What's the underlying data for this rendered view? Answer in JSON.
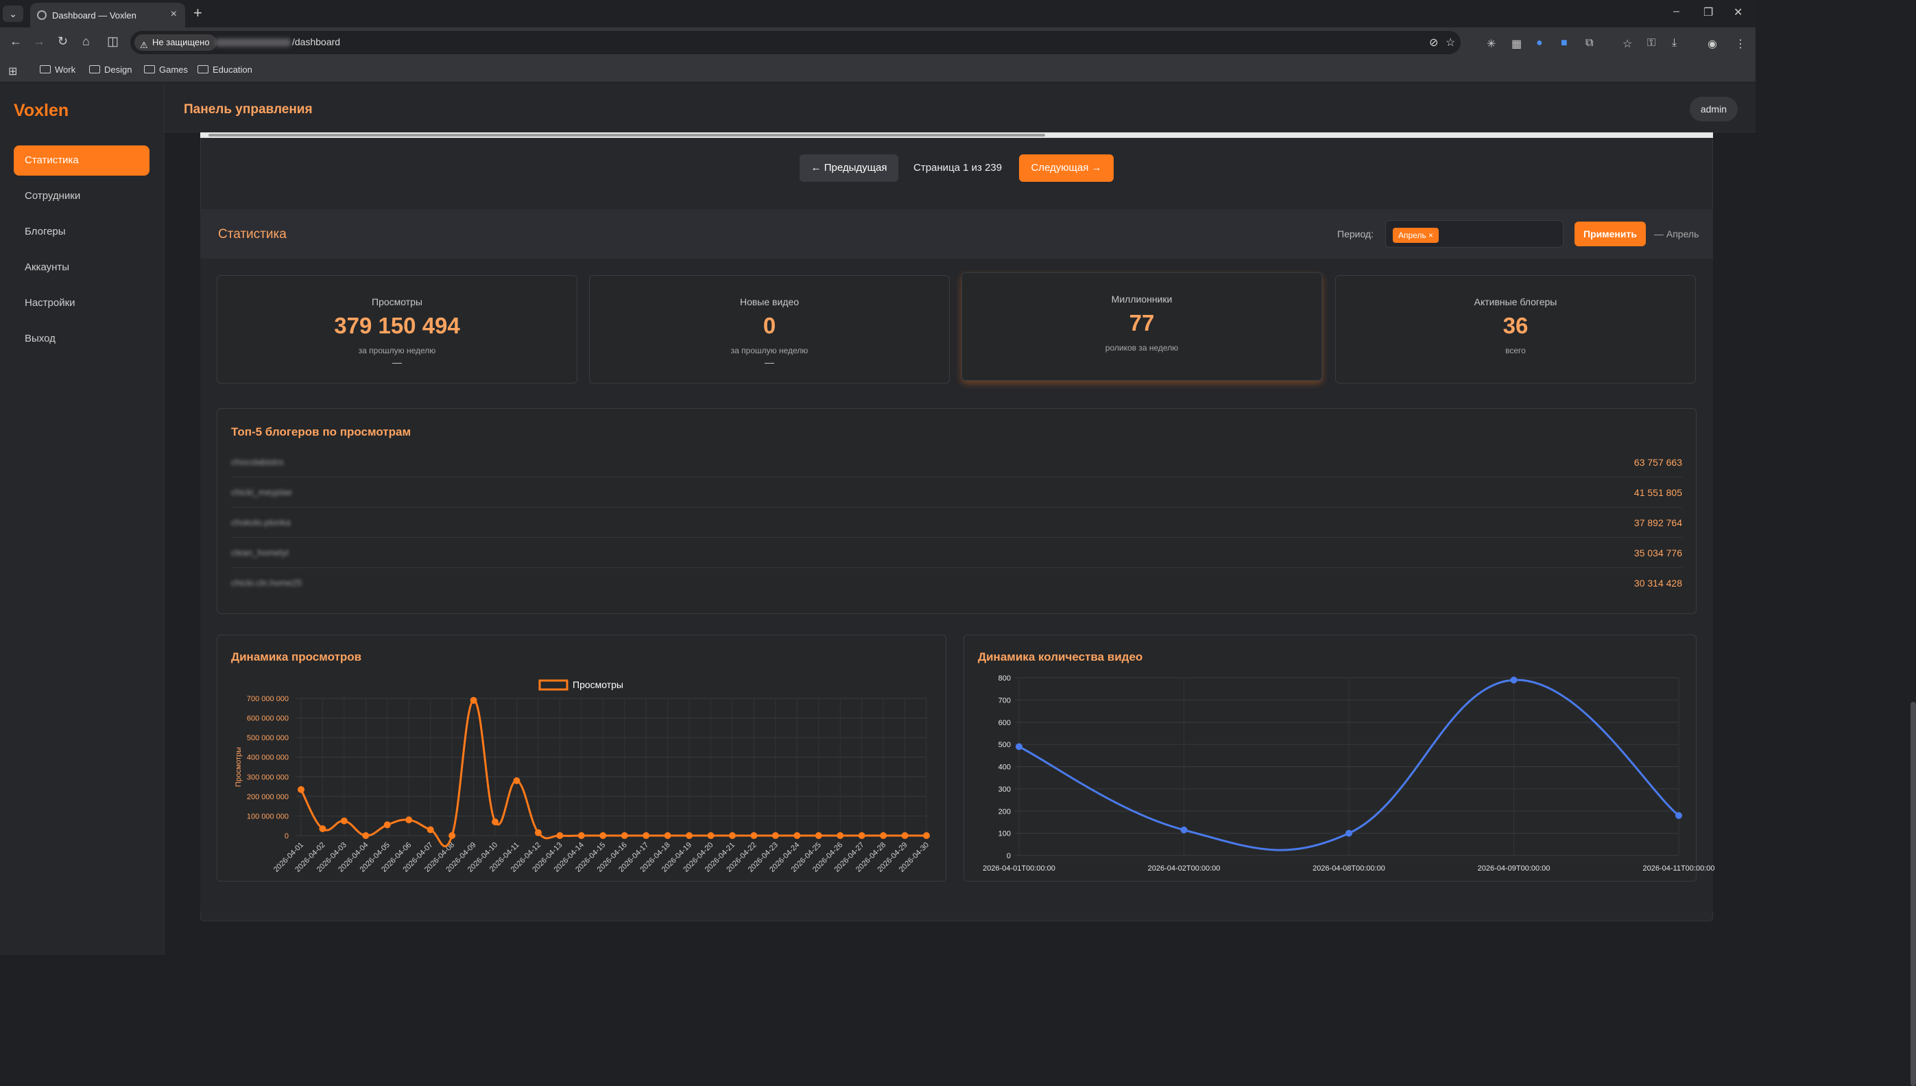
{
  "browser": {
    "tab_title": "Dashboard — Voxlen",
    "security_label": "Не защищено",
    "url_path": "/dashboard",
    "bookmarks": [
      "Work",
      "Design",
      "Games",
      "Education"
    ]
  },
  "app": {
    "logo": "Voxlen",
    "page_title": "Панель управления",
    "user": "admin",
    "nav": [
      {
        "label": "Статистика",
        "active": true
      },
      {
        "label": "Сотрудники"
      },
      {
        "label": "Блогеры"
      },
      {
        "label": "Аккаунты"
      },
      {
        "label": "Настройки"
      },
      {
        "label": "Выход"
      }
    ],
    "accent": "#ff7a1a"
  },
  "pager": {
    "prev": "← Предыдущая",
    "indicator": "Страница 1 из 239",
    "next": "Следующая →"
  },
  "stats": {
    "title": "Статистика",
    "period_label": "Период:",
    "period_chip": "Апрель ×",
    "apply": "Применить",
    "period_note": "— Апрель",
    "kpis": [
      {
        "label": "Просмотры",
        "value": "379 150 494",
        "sub": "за прошлую неделю",
        "dash": "—"
      },
      {
        "label": "Новые видео",
        "value": "0",
        "sub": "за прошлую неделю",
        "dash": "—"
      },
      {
        "label": "Миллионники",
        "value": "77",
        "sub": "роликов за неделю",
        "dash": ""
      },
      {
        "label": "Активные блогеры",
        "value": "36",
        "sub": "всего",
        "dash": ""
      }
    ]
  },
  "top5": {
    "title": "Топ-5 блогеров по просмотрам",
    "rows": [
      {
        "name": "chocolabistro",
        "value": "63 757 663"
      },
      {
        "name": "chicki_meyplae",
        "value": "41 551 805"
      },
      {
        "name": "chokolo.plonka",
        "value": "37 892 764"
      },
      {
        "name": "clean_homelyt",
        "value": "35 034 776"
      },
      {
        "name": "chicki.cln.home25",
        "value": "30 314 428"
      }
    ]
  },
  "chart_data": [
    {
      "type": "line",
      "title": "Динамика просмотров",
      "ylabel": "Просмотры",
      "xlabel": "",
      "legend": "top-center",
      "series": [
        {
          "name": "Просмотры",
          "color": "#ff7a1a",
          "values": [
            235000000,
            35000000,
            75000000,
            0,
            55000000,
            80000000,
            30000000,
            0,
            690000000,
            70000000,
            280000000,
            15000000,
            0,
            0,
            0,
            0,
            0,
            0,
            0,
            0,
            0,
            0,
            0,
            0,
            0,
            0,
            0,
            0,
            0,
            0
          ]
        }
      ],
      "categories": [
        "2026-04-01",
        "2026-04-02",
        "2026-04-03",
        "2026-04-04",
        "2026-04-05",
        "2026-04-06",
        "2026-04-07",
        "2026-04-08",
        "2026-04-09",
        "2026-04-10",
        "2026-04-11",
        "2026-04-12",
        "2026-04-13",
        "2026-04-14",
        "2026-04-15",
        "2026-04-16",
        "2026-04-17",
        "2026-04-18",
        "2026-04-19",
        "2026-04-20",
        "2026-04-21",
        "2026-04-22",
        "2026-04-23",
        "2026-04-24",
        "2026-04-25",
        "2026-04-26",
        "2026-04-27",
        "2026-04-28",
        "2026-04-29",
        "2026-04-30"
      ],
      "yticks": [
        "0",
        "100 000 000",
        "200 000 000",
        "300 000 000",
        "400 000 000",
        "500 000 000",
        "600 000 000",
        "700 000 000"
      ],
      "ylim": [
        0,
        700000000
      ],
      "grid": true
    },
    {
      "type": "line",
      "title": "Динамика количества видео",
      "series": [
        {
          "color": "#4a7bec",
          "values": [
            490,
            115,
            100,
            790,
            180
          ]
        }
      ],
      "categories": [
        "2026-04-01T00:00:00",
        "2026-04-02T00:00:00",
        "2026-04-08T00:00:00",
        "2026-04-09T00:00:00",
        "2026-04-11T00:00:00"
      ],
      "yticks": [
        "0",
        "100",
        "200",
        "300",
        "400",
        "500",
        "600",
        "700",
        "800"
      ],
      "ylim": [
        0,
        800
      ],
      "grid": true
    }
  ]
}
